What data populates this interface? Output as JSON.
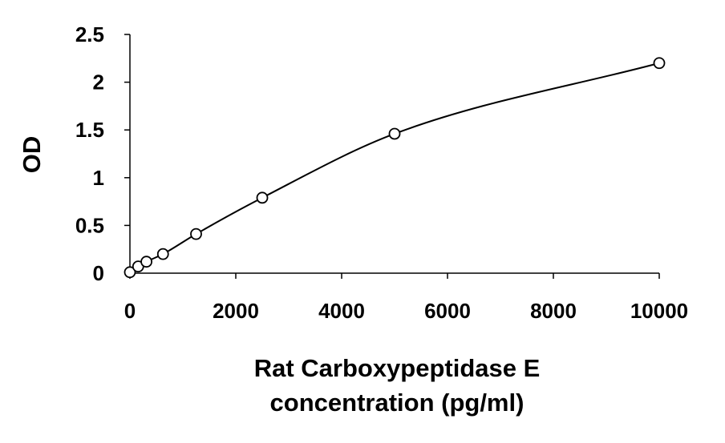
{
  "chart_data": {
    "type": "scatter",
    "title": "",
    "xlabel_lines": [
      "Rat Carboxypeptidase E",
      "concentration (pg/ml)"
    ],
    "ylabel": "OD",
    "xlim": [
      0,
      10000
    ],
    "ylim": [
      0,
      2.5
    ],
    "xticks": [
      "0",
      "2000",
      "4000",
      "6000",
      "8000",
      "10000"
    ],
    "xtick_values": [
      0,
      2000,
      4000,
      6000,
      8000,
      10000
    ],
    "yticks": [
      "0",
      "0.5",
      "1",
      "1.5",
      "2",
      "2.5"
    ],
    "ytick_values": [
      0,
      0.5,
      1,
      1.5,
      2,
      2.5
    ],
    "grid": false,
    "legend": "none",
    "series": [
      {
        "marker": "open-circle",
        "x": [
          0,
          156,
          312,
          625,
          1250,
          2500,
          5000,
          10000
        ],
        "y": [
          0.01,
          0.07,
          0.12,
          0.2,
          0.41,
          0.79,
          1.46,
          2.2
        ]
      }
    ],
    "fit_curve": {
      "style": "smooth-line",
      "x": [
        0,
        156,
        312,
        625,
        1250,
        2500,
        5000,
        10000
      ],
      "y": [
        0.01,
        0.07,
        0.12,
        0.2,
        0.41,
        0.79,
        1.46,
        2.2
      ]
    },
    "colors": {
      "line": "#000000",
      "marker_stroke": "#000000",
      "marker_fill": "#ffffff",
      "axis": "#000000"
    }
  }
}
